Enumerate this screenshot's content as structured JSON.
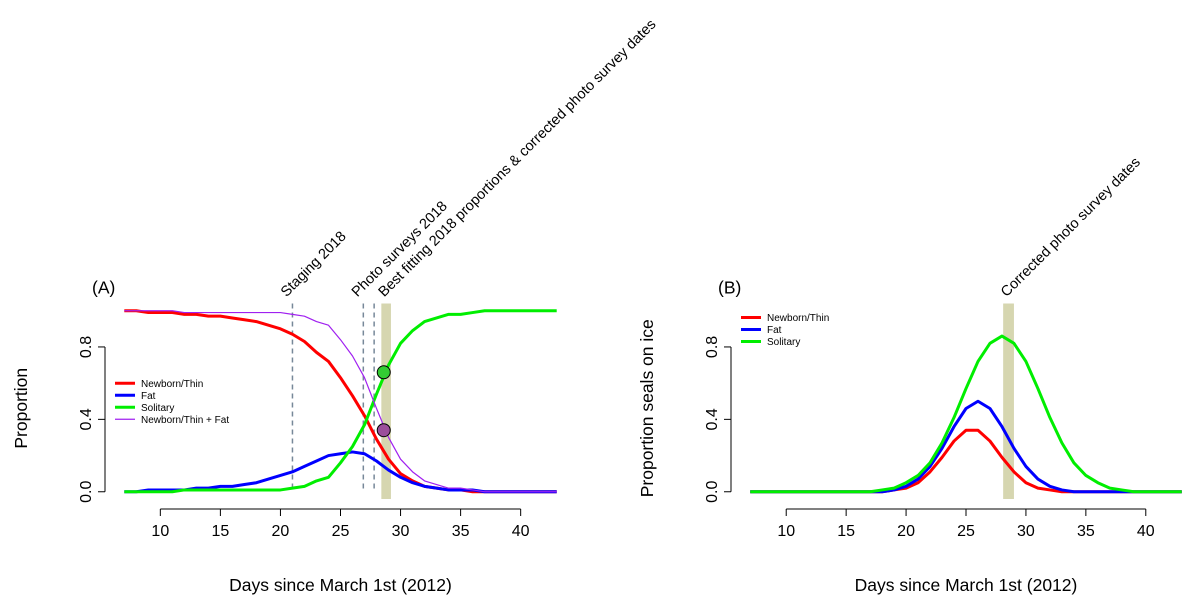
{
  "chart_data": [
    {
      "type": "line",
      "panel": "(A)",
      "xlabel": "Days since March 1st (2012)",
      "ylabel": "Proportion",
      "x": [
        7,
        8,
        9,
        10,
        11,
        12,
        13,
        14,
        15,
        16,
        17,
        18,
        19,
        20,
        21,
        22,
        23,
        24,
        25,
        26,
        27,
        28,
        29,
        30,
        31,
        32,
        33,
        34,
        35,
        36,
        37,
        38,
        39,
        40,
        41,
        42,
        43
      ],
      "series": [
        {
          "name": "Newborn/Thin",
          "color": "#ff0000",
          "line_width": 3,
          "values": [
            1,
            1,
            0.99,
            0.99,
            0.99,
            0.98,
            0.98,
            0.97,
            0.97,
            0.96,
            0.95,
            0.94,
            0.92,
            0.9,
            0.87,
            0.83,
            0.77,
            0.72,
            0.63,
            0.53,
            0.42,
            0.29,
            0.18,
            0.1,
            0.06,
            0.03,
            0.02,
            0.01,
            0.01,
            0,
            0,
            0,
            0,
            0,
            0,
            0,
            0
          ]
        },
        {
          "name": "Fat",
          "color": "#0000ff",
          "line_width": 3,
          "values": [
            0,
            0,
            0.01,
            0.01,
            0.01,
            0.01,
            0.02,
            0.02,
            0.03,
            0.03,
            0.04,
            0.05,
            0.07,
            0.09,
            0.11,
            0.14,
            0.17,
            0.2,
            0.21,
            0.22,
            0.21,
            0.17,
            0.12,
            0.08,
            0.05,
            0.03,
            0.02,
            0.01,
            0.01,
            0.01,
            0,
            0,
            0,
            0,
            0,
            0,
            0
          ]
        },
        {
          "name": "Solitary",
          "color": "#00ee00",
          "line_width": 3,
          "values": [
            0,
            0,
            0,
            0,
            0,
            0.01,
            0.01,
            0.01,
            0.01,
            0.01,
            0.01,
            0.01,
            0.01,
            0.01,
            0.02,
            0.03,
            0.06,
            0.08,
            0.16,
            0.25,
            0.37,
            0.54,
            0.7,
            0.82,
            0.89,
            0.94,
            0.96,
            0.98,
            0.98,
            0.99,
            1,
            1,
            1,
            1,
            1,
            1,
            1
          ]
        },
        {
          "name": "Newborn/Thin + Fat",
          "color": "#a020f0",
          "line_width": 1.2,
          "values": [
            1,
            1,
            1,
            1,
            1,
            0.99,
            0.99,
            0.99,
            0.99,
            0.99,
            0.99,
            0.99,
            0.99,
            0.99,
            0.98,
            0.97,
            0.94,
            0.92,
            0.84,
            0.75,
            0.63,
            0.46,
            0.3,
            0.18,
            0.11,
            0.06,
            0.04,
            0.02,
            0.02,
            0.01,
            0,
            0,
            0,
            0,
            0,
            0,
            0
          ]
        }
      ],
      "xlim": [
        5.56,
        44.44
      ],
      "ylim": [
        -0.04,
        1.04
      ],
      "xticks": [
        10,
        15,
        20,
        25,
        30,
        35,
        40
      ],
      "yticks": [
        {
          "value": 0,
          "label": "0.0"
        },
        {
          "value": 0.4,
          "label": "0.4"
        },
        {
          "value": 0.8,
          "label": "0.8"
        }
      ],
      "legend": "center-left",
      "bands": [
        {
          "xmin": 28.4,
          "xmax": 29.2,
          "color": "#d6d6b0",
          "label": "Best fitting 2018 proportions & corrected photo survey dates",
          "label_color": "#000000"
        }
      ],
      "vlines": [
        {
          "x": [
            21
          ],
          "color": "#778899",
          "label": "Staging 2018"
        },
        {
          "x": [
            26.9,
            27.8
          ],
          "color": "#778899",
          "label": "Photo surveys 2018"
        }
      ],
      "points": [
        {
          "x": 28.6,
          "y": 0.66,
          "color": "#33cc33"
        },
        {
          "x": 28.6,
          "y": 0.34,
          "color": "#9b4f9b"
        }
      ]
    },
    {
      "type": "line",
      "panel": "(B)",
      "xlabel": "Days since March 1st (2012)",
      "ylabel": "Proportion seals on ice",
      "x": [
        7,
        8,
        9,
        10,
        11,
        12,
        13,
        14,
        15,
        16,
        17,
        18,
        19,
        20,
        21,
        22,
        23,
        24,
        25,
        26,
        27,
        28,
        29,
        30,
        31,
        32,
        33,
        34,
        35,
        36,
        37,
        38,
        39,
        40,
        41,
        42,
        43
      ],
      "series": [
        {
          "name": "Newborn/Thin",
          "color": "#ff0000",
          "line_width": 3,
          "values": [
            0,
            0,
            0,
            0,
            0,
            0,
            0,
            0,
            0,
            0,
            0,
            0,
            0.01,
            0.02,
            0.05,
            0.11,
            0.19,
            0.28,
            0.34,
            0.34,
            0.28,
            0.19,
            0.11,
            0.05,
            0.02,
            0.01,
            0,
            0,
            0,
            0,
            0,
            0,
            0,
            0,
            0,
            0,
            0
          ]
        },
        {
          "name": "Fat",
          "color": "#0000ff",
          "line_width": 3,
          "values": [
            0,
            0,
            0,
            0,
            0,
            0,
            0,
            0,
            0,
            0,
            0,
            0,
            0.01,
            0.03,
            0.07,
            0.14,
            0.24,
            0.36,
            0.46,
            0.5,
            0.46,
            0.36,
            0.24,
            0.14,
            0.07,
            0.03,
            0.01,
            0,
            0,
            0,
            0,
            0,
            0,
            0,
            0,
            0,
            0
          ]
        },
        {
          "name": "Solitary",
          "color": "#00ee00",
          "line_width": 3,
          "values": [
            0,
            0,
            0,
            0,
            0,
            0,
            0,
            0,
            0,
            0,
            0,
            0.01,
            0.02,
            0.05,
            0.09,
            0.16,
            0.27,
            0.41,
            0.57,
            0.72,
            0.82,
            0.86,
            0.82,
            0.72,
            0.57,
            0.41,
            0.27,
            0.16,
            0.09,
            0.05,
            0.02,
            0.01,
            0,
            0,
            0,
            0,
            0
          ]
        }
      ],
      "xlim": [
        5.56,
        44.44
      ],
      "ylim": [
        -0.04,
        1.04
      ],
      "xticks": [
        10,
        15,
        20,
        25,
        30,
        35,
        40
      ],
      "yticks": [
        {
          "value": 0,
          "label": "0.0"
        },
        {
          "value": 0.4,
          "label": "0.4"
        },
        {
          "value": 0.8,
          "label": "0.8"
        }
      ],
      "legend": "top-left",
      "bands": [
        {
          "xmin": 28.1,
          "xmax": 29.0,
          "color": "#d6d6b0",
          "label": "Corrected photo survey dates",
          "label_color": "#000000"
        }
      ],
      "vlines": [],
      "points": []
    }
  ]
}
